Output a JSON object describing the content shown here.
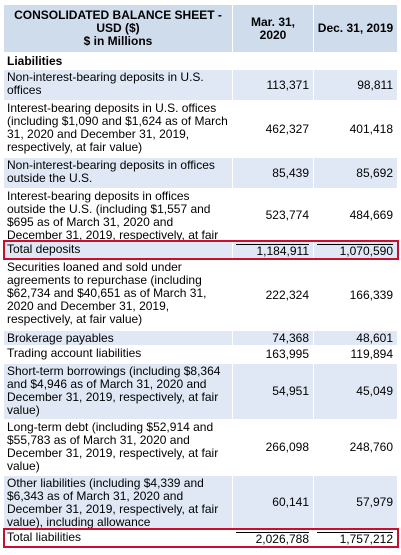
{
  "header": {
    "title_lines": [
      "CONSOLIDATED BALANCE SHEET -",
      "USD ($)",
      "$ in Millions"
    ],
    "columns": [
      "Mar. 31, 2020",
      "Dec. 31, 2019"
    ]
  },
  "section": "Liabilities",
  "rows": [
    {
      "label": "Non-interest-bearing deposits in U.S. offices",
      "values": [
        "113,371",
        "98,811"
      ]
    },
    {
      "label": "Interest-bearing deposits in U.S. offices (including $1,090 and $1,624 as of March 31, 2020 and December 31, 2019, respectively, at fair value)",
      "values": [
        "462,327",
        "401,418"
      ]
    },
    {
      "label": "Non-interest-bearing deposits in offices outside the U.S.",
      "values": [
        "85,439",
        "85,692"
      ]
    },
    {
      "label": "Interest-bearing deposits in offices outside the U.S. (including $1,557 and $695 as of March 31, 2020 and December 31, 2019, respectively, at fair value)",
      "values": [
        "523,774",
        "484,669"
      ]
    },
    {
      "label": "Total deposits",
      "values": [
        "1,184,911",
        "1,070,590"
      ],
      "total": true
    },
    {
      "label": "Securities loaned and sold under agreements to repurchase (including $62,734 and $40,651 as of March 31, 2020 and December 31, 2019, respectively, at fair value)",
      "values": [
        "222,324",
        "166,339"
      ]
    },
    {
      "label": "Brokerage payables",
      "values": [
        "74,368",
        "48,601"
      ]
    },
    {
      "label": "Trading account liabilities",
      "values": [
        "163,995",
        "119,894"
      ]
    },
    {
      "label": "Short-term borrowings (including $8,364 and $4,946 as of March 31, 2020 and December 31, 2019, respectively, at fair value)",
      "values": [
        "54,951",
        "45,049"
      ]
    },
    {
      "label": "Long-term debt (including $52,914 and $55,783 as of March 31, 2020 and December 31, 2019, respectively, at fair value)",
      "values": [
        "266,098",
        "248,760"
      ]
    },
    {
      "label": "Other liabilities (including $4,339 and $6,343 as of March 31, 2020 and December 31, 2019, respectively, at fair value), including allowance",
      "values": [
        "60,141",
        "57,979"
      ]
    },
    {
      "label": "Total liabilities",
      "values": [
        "2,026,788",
        "1,757,212"
      ],
      "total": true
    }
  ]
}
